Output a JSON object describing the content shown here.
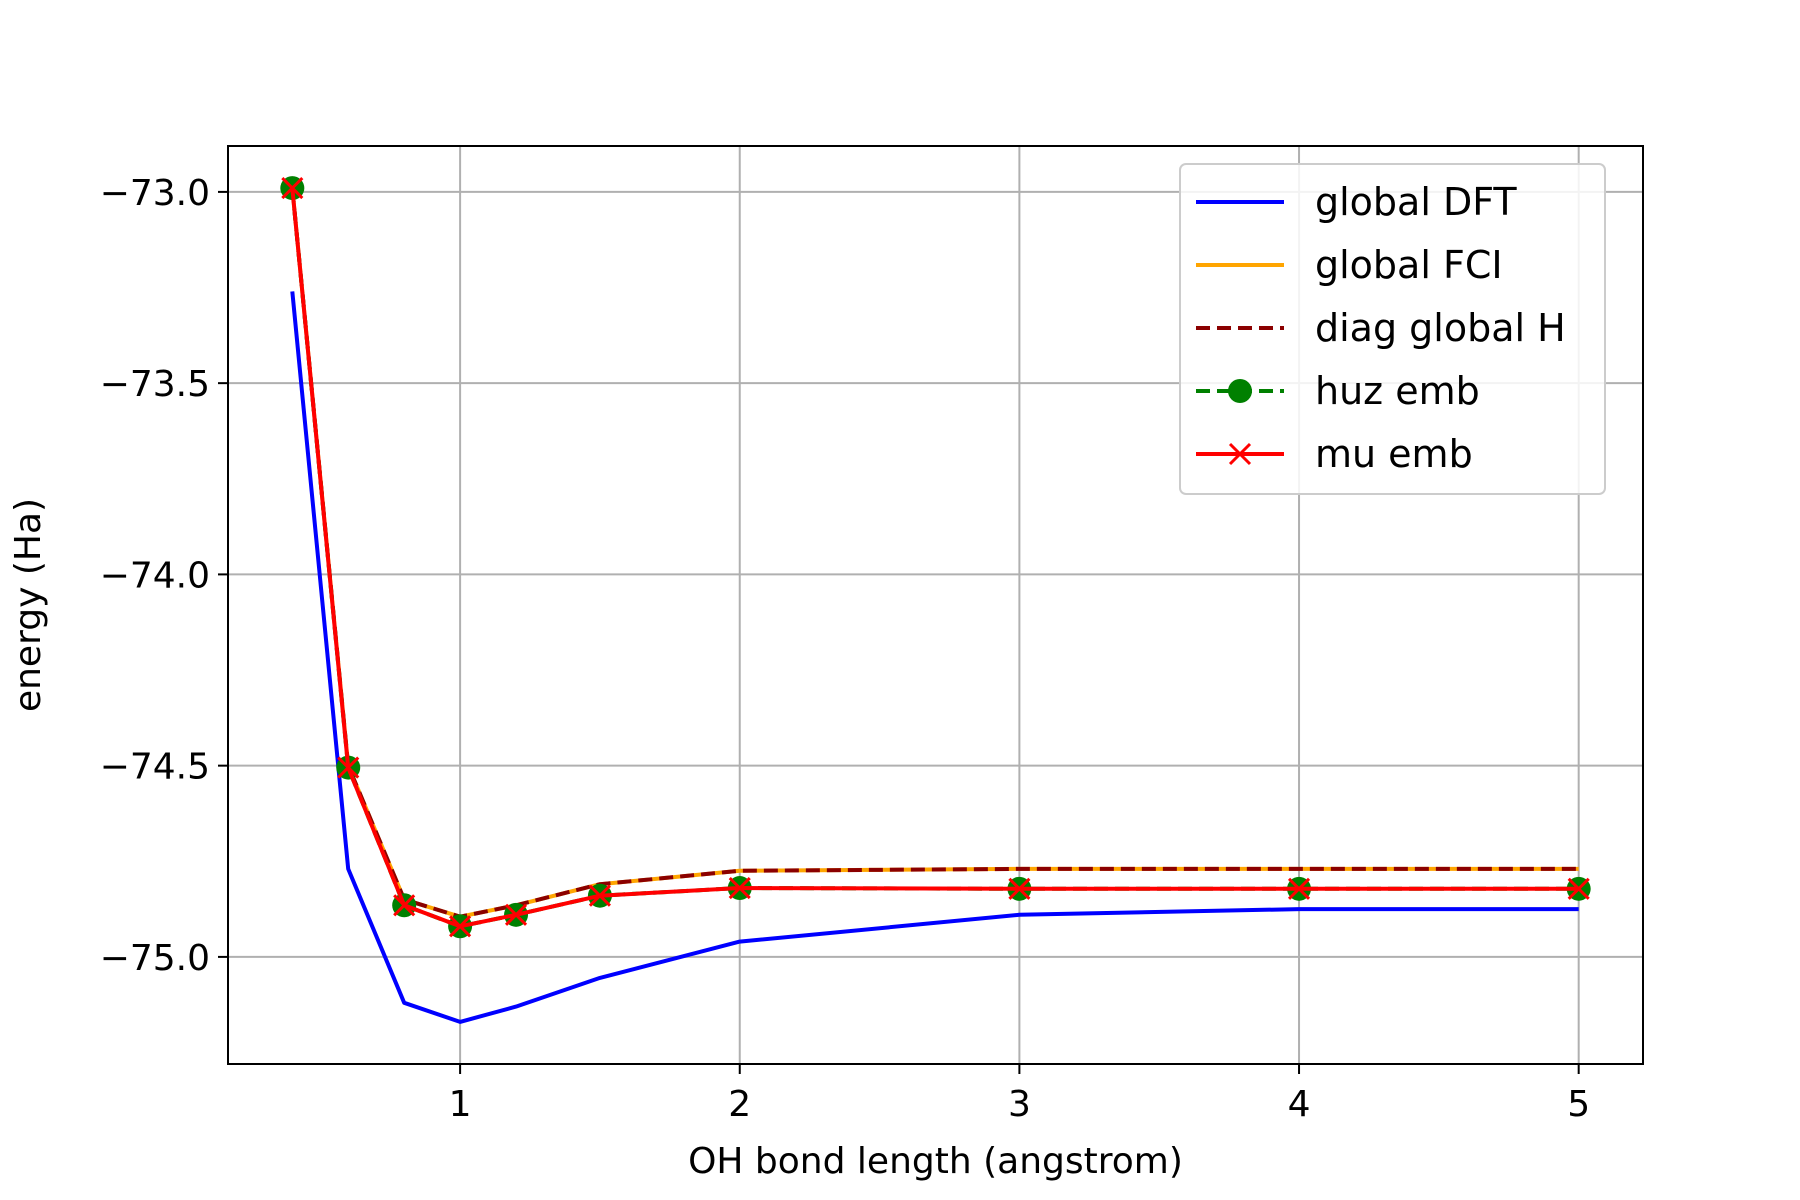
{
  "chart_data": {
    "type": "line",
    "title": "",
    "xlabel": "OH bond length (angstrom)",
    "ylabel": "energy (Ha)",
    "xlim": [
      0.17,
      5.23
    ],
    "ylim": [
      -75.28,
      -72.88
    ],
    "xticks": [
      1,
      2,
      3,
      4,
      5
    ],
    "yticks": [
      -73.0,
      -73.5,
      -74.0,
      -74.5,
      -75.0
    ],
    "ytick_labels": [
      "−73.0",
      "−73.5",
      "−74.0",
      "−74.5",
      "−75.0"
    ],
    "grid": true,
    "legend_position": "top-right",
    "x": [
      0.4,
      0.6,
      0.8,
      1.0,
      1.2,
      1.5,
      2.0,
      3.0,
      4.0,
      5.0
    ],
    "series": [
      {
        "name": "global DFT",
        "color": "#0000ff",
        "style": "solid",
        "marker": "none",
        "values": [
          -73.26,
          -74.77,
          -75.12,
          -75.17,
          -75.13,
          -75.055,
          -74.96,
          -74.89,
          -74.875,
          -74.875
        ]
      },
      {
        "name": "global FCI",
        "color": "#ffa500",
        "style": "solid",
        "marker": "none",
        "values": [
          -72.99,
          -74.5,
          -74.85,
          -74.895,
          -74.865,
          -74.81,
          -74.775,
          -74.77,
          -74.77,
          -74.77
        ]
      },
      {
        "name": "diag global H",
        "color": "#8b0000",
        "style": "dashed",
        "marker": "none",
        "values": [
          -72.99,
          -74.5,
          -74.85,
          -74.895,
          -74.865,
          -74.81,
          -74.775,
          -74.77,
          -74.77,
          -74.77
        ]
      },
      {
        "name": "huz emb",
        "color": "#008000",
        "style": "dashed",
        "marker": "circle",
        "values": [
          -72.99,
          -74.505,
          -74.865,
          -74.92,
          -74.89,
          -74.84,
          -74.82,
          -74.822,
          -74.822,
          -74.822
        ]
      },
      {
        "name": "mu emb",
        "color": "#ff0000",
        "style": "solid",
        "marker": "x",
        "values": [
          -72.99,
          -74.505,
          -74.865,
          -74.92,
          -74.89,
          -74.84,
          -74.82,
          -74.822,
          -74.822,
          -74.822
        ]
      }
    ]
  }
}
